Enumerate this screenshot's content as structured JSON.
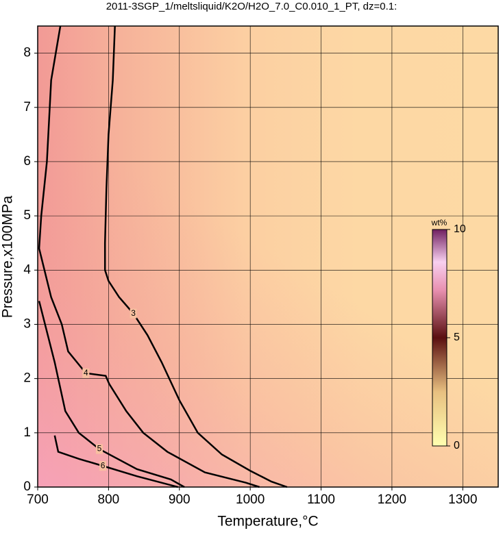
{
  "chart_data": {
    "type": "contour",
    "title": "2011-3SGP_1/meltsliquid/K2O/H2O_7.0_C0.010_1_PT, dz=0.1:",
    "x_label": "Temperature,°C",
    "y_label": "Pressure,x100MPa",
    "xlim": [
      700,
      1350
    ],
    "xticks": [
      700,
      800,
      900,
      1000,
      1100,
      1200,
      1300
    ],
    "ylim": [
      0,
      8.5
    ],
    "yticks": [
      0,
      1,
      2,
      3,
      4,
      5,
      6,
      7,
      8
    ],
    "grid": true,
    "contours": [
      {
        "level": 3,
        "color": "#000000",
        "x": [
          809,
          806,
          800,
          797,
          795,
          795,
          800,
          815,
          835,
          855,
          875,
          900,
          926,
          960,
          1000,
          1030,
          1052
        ],
        "y": [
          8.5,
          7.5,
          6.5,
          5.5,
          4.5,
          4.0,
          3.8,
          3.5,
          3.2,
          2.8,
          2.3,
          1.6,
          1.0,
          0.6,
          0.3,
          0.1,
          0
        ]
      },
      {
        "level": 4,
        "color": "#000000",
        "x": [
          732,
          719,
          713,
          705,
          702,
          719,
          734,
          743,
          768,
          796,
          801,
          825,
          849,
          883,
          936,
          994,
          1013
        ],
        "y": [
          8.5,
          7.5,
          6.0,
          5.0,
          4.4,
          3.5,
          3.0,
          2.5,
          2.1,
          2.05,
          1.9,
          1.4,
          1.0,
          0.65,
          0.27,
          0.08,
          0
        ]
      },
      {
        "level": 5,
        "color": "#000000",
        "x": [
          702,
          724,
          739,
          758,
          787,
          840,
          888,
          907
        ],
        "y": [
          3.43,
          2.3,
          1.4,
          1.0,
          0.7,
          0.33,
          0.14,
          0
        ]
      },
      {
        "level": 6,
        "color": "#000000",
        "x": [
          724,
          729,
          758,
          792,
          840,
          898
        ],
        "y": [
          0.95,
          0.65,
          0.52,
          0.39,
          0.2,
          0
        ]
      }
    ],
    "colorbar": {
      "label": "wt%",
      "lim": [
        0,
        10
      ],
      "ticks": [
        0,
        5,
        10
      ]
    }
  }
}
